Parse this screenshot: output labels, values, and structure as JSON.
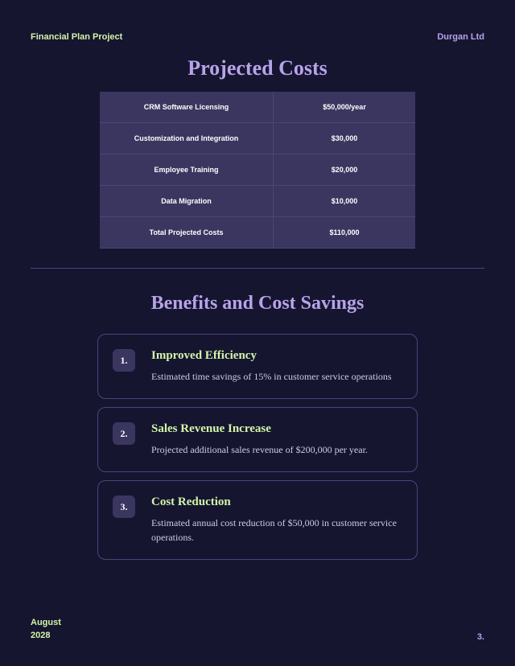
{
  "header": {
    "project_title": "Financial Plan Project",
    "company_name": "Durgan Ltd"
  },
  "costs": {
    "title": "Projected Costs",
    "rows": [
      {
        "label": "CRM Software Licensing",
        "value": "$50,000/year"
      },
      {
        "label": "Customization and Integration",
        "value": "$30,000"
      },
      {
        "label": "Employee Training",
        "value": "$20,000"
      },
      {
        "label": "Data Migration",
        "value": "$10,000"
      },
      {
        "label": "Total Projected Costs",
        "value": "$110,000"
      }
    ]
  },
  "benefits": {
    "title": "Benefits and Cost Savings",
    "items": [
      {
        "number": "1.",
        "title": "Improved Efficiency",
        "description": "Estimated time savings of 15% in customer service operations"
      },
      {
        "number": "2.",
        "title": "Sales Revenue Increase",
        "description": "Projected additional sales revenue of $200,000 per year."
      },
      {
        "number": "3.",
        "title": "Cost Reduction",
        "description": "Estimated annual cost reduction of $50,000 in customer service operations."
      }
    ]
  },
  "footer": {
    "month": "August",
    "year": "2028",
    "page": "3."
  }
}
